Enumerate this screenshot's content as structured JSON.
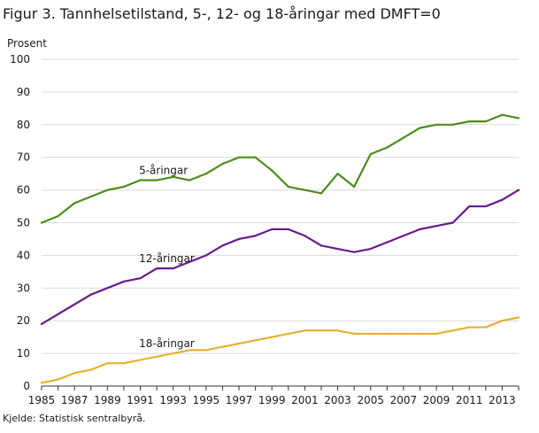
{
  "title": "Figur 3. Tannhelsetilstand, 5-, 12- og 18-åringar med DMFT=0",
  "source": "Kjelde: Statistisk sentralbyrå.",
  "chart_data": {
    "type": "line",
    "title": "Figur 3. Tannhelsetilstand, 5-, 12- og 18-åringar med DMFT=0",
    "ylabel": "Prosent",
    "xlabel": "",
    "ylim": [
      0,
      100
    ],
    "xlim": [
      1985,
      2014
    ],
    "yticks": [
      0,
      10,
      20,
      30,
      40,
      50,
      60,
      70,
      80,
      90,
      100
    ],
    "xticks": [
      1985,
      1987,
      1989,
      1991,
      1993,
      1995,
      1997,
      1999,
      2001,
      2003,
      2005,
      2007,
      2009,
      2011,
      2013
    ],
    "grid": "horizontal",
    "legend": "inline labels",
    "x": [
      1985,
      1986,
      1987,
      1988,
      1989,
      1990,
      1991,
      1992,
      1993,
      1994,
      1995,
      1996,
      1997,
      1998,
      1999,
      2000,
      2001,
      2002,
      2003,
      2004,
      2005,
      2006,
      2007,
      2008,
      2009,
      2010,
      2011,
      2012,
      2013,
      2014
    ],
    "series": [
      {
        "name": "5-åringar",
        "color": "#4e8c1a",
        "values": [
          50,
          52,
          56,
          58,
          60,
          61,
          63,
          63,
          64,
          63,
          65,
          68,
          70,
          70,
          66,
          61,
          60,
          59,
          65,
          61,
          71,
          73,
          76,
          79,
          80,
          80,
          81,
          81,
          83,
          82
        ]
      },
      {
        "name": "12-åringar",
        "color": "#6a1a8a",
        "values": [
          19,
          22,
          25,
          28,
          30,
          32,
          33,
          36,
          36,
          38,
          40,
          43,
          45,
          46,
          48,
          48,
          46,
          43,
          42,
          41,
          42,
          44,
          46,
          48,
          49,
          50,
          55,
          55,
          57,
          60
        ]
      },
      {
        "name": "18-åringar",
        "color": "#e8b030",
        "values": [
          1,
          2,
          4,
          5,
          7,
          7,
          8,
          9,
          10,
          11,
          11,
          12,
          13,
          14,
          15,
          16,
          17,
          17,
          17,
          16,
          16,
          16,
          16,
          16,
          16,
          17,
          18,
          18,
          20,
          21
        ]
      }
    ],
    "annotations": [
      {
        "text": "5-åringar",
        "series": 0,
        "x": 1992,
        "y": 66
      },
      {
        "text": "12-åringar",
        "series": 1,
        "x": 1992,
        "y": 39
      },
      {
        "text": "18-åringar",
        "series": 2,
        "x": 1992,
        "y": 13
      }
    ]
  }
}
